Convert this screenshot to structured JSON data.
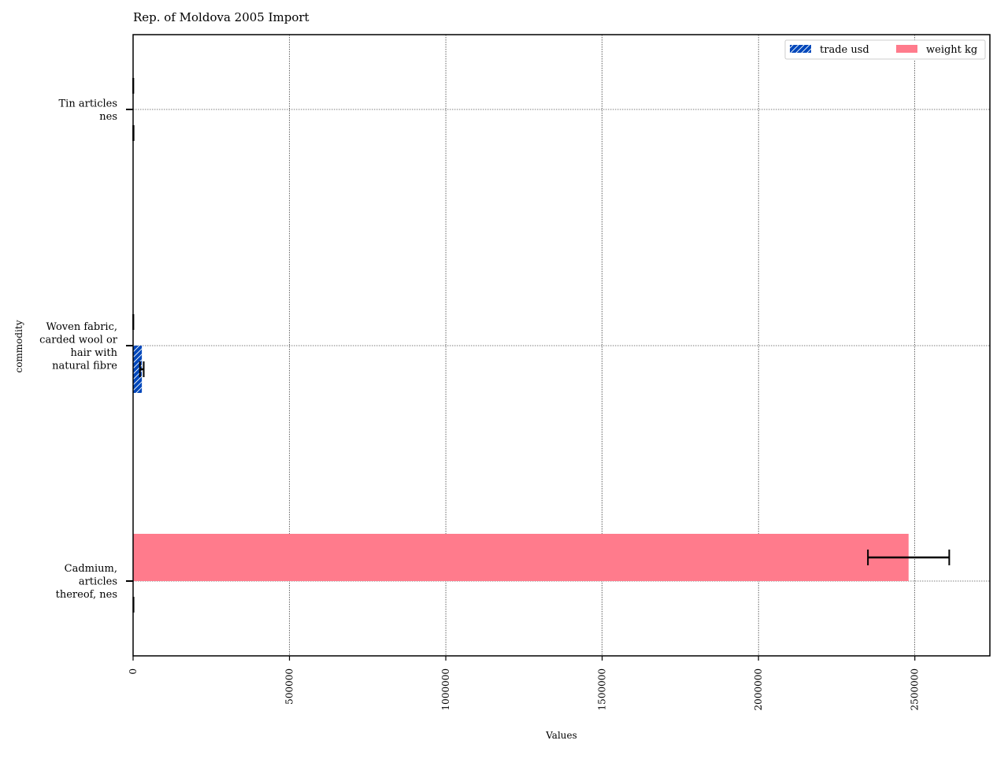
{
  "chart_data": {
    "type": "bar",
    "orientation": "horizontal",
    "title": "Rep. of Moldova 2005 Import",
    "xlabel": "Values",
    "ylabel": "commodity",
    "categories": [
      [
        "Cadmium,",
        "articles",
        "thereof, nes"
      ],
      [
        "Woven fabric,",
        "carded wool or",
        "hair with",
        "natural fibre"
      ],
      [
        "Tin articles",
        "nes"
      ]
    ],
    "series": [
      {
        "name": "trade usd",
        "color": "#0047bb",
        "values": [
          1200,
          28000,
          1000
        ],
        "errors": [
          200,
          6000,
          600
        ]
      },
      {
        "name": "weight kg",
        "color": "#ff7b8c",
        "values": [
          2480000,
          600,
          500
        ],
        "errors": [
          130000,
          200,
          200
        ]
      }
    ],
    "xlim": [
      0,
      2740000
    ],
    "xticks": [
      0,
      500000,
      1000000,
      1500000,
      2000000,
      2500000
    ],
    "grid": true,
    "legend_position": "top-right"
  }
}
